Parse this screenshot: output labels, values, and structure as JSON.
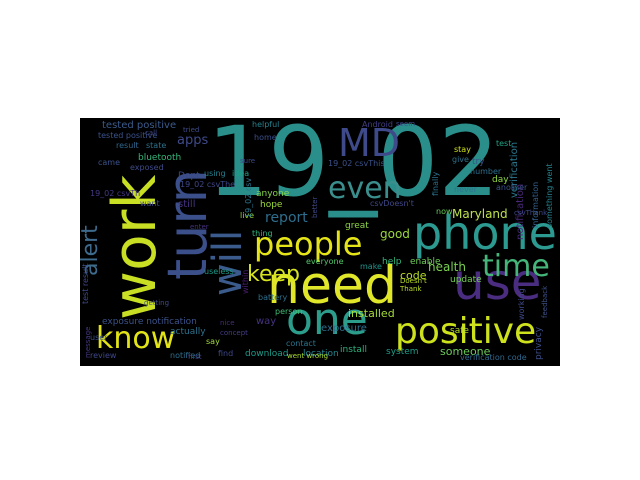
{
  "wordcloud": {
    "background": "#000000",
    "words": [
      {
        "text": "19_02",
        "color": "#2a8f8a",
        "orientation": "horizontal"
      },
      {
        "text": "need",
        "color": "#e0e629",
        "orientation": "horizontal"
      },
      {
        "text": "phone",
        "color": "#2c9a90",
        "orientation": "horizontal"
      },
      {
        "text": "work",
        "color": "#c9df24",
        "orientation": "vertical"
      },
      {
        "text": "use",
        "color": "#4a2d80",
        "orientation": "horizontal"
      },
      {
        "text": "turn",
        "color": "#3b4f8a",
        "orientation": "vertical"
      },
      {
        "text": "one",
        "color": "#2c9d8b",
        "orientation": "horizontal"
      },
      {
        "text": "positive",
        "color": "#cde11d",
        "orientation": "horizontal"
      },
      {
        "text": "will",
        "color": "#3a5b8c",
        "orientation": "vertical"
      },
      {
        "text": "people",
        "color": "#e5e419",
        "orientation": "horizontal"
      },
      {
        "text": "MD",
        "color": "#3f4a8a",
        "orientation": "horizontal"
      },
      {
        "text": "even",
        "color": "#3a8f8d",
        "orientation": "horizontal"
      },
      {
        "text": "know",
        "color": "#e2e418",
        "orientation": "horizontal"
      },
      {
        "text": "time",
        "color": "#45b57a",
        "orientation": "horizontal"
      },
      {
        "text": "keep",
        "color": "#d6e31e",
        "orientation": "horizontal"
      },
      {
        "text": "alert",
        "color": "#3e6b8d",
        "orientation": "vertical"
      },
      {
        "text": "tested positive",
        "color": "#3b5b8c",
        "orientation": "horizontal"
      },
      {
        "text": "apps",
        "color": "#3e4a89",
        "orientation": "horizontal"
      },
      {
        "text": "bluetooth",
        "color": "#35b779",
        "orientation": "horizontal"
      },
      {
        "text": "report",
        "color": "#2e6e8e",
        "orientation": "horizontal"
      },
      {
        "text": "Maryland",
        "color": "#bde050",
        "orientation": "horizontal"
      },
      {
        "text": "good",
        "color": "#9bd93c",
        "orientation": "horizontal"
      },
      {
        "text": "health",
        "color": "#7ad151",
        "orientation": "horizontal"
      },
      {
        "text": "code",
        "color": "#b8de29",
        "orientation": "horizontal"
      },
      {
        "text": "installed",
        "color": "#a5db36",
        "orientation": "horizontal"
      },
      {
        "text": "exposure notification",
        "color": "#3b528b",
        "orientation": "horizontal"
      },
      {
        "text": "someone",
        "color": "#6ccd5a",
        "orientation": "horizontal"
      },
      {
        "text": "verification code",
        "color": "#31688e",
        "orientation": "horizontal"
      },
      {
        "text": "notification",
        "color": "#482878",
        "orientation": "vertical"
      },
      {
        "text": "verification",
        "color": "#2a788e",
        "orientation": "vertical"
      },
      {
        "text": "day",
        "color": "#8fd744",
        "orientation": "horizontal"
      },
      {
        "text": "Dept",
        "color": "#3e4989",
        "orientation": "horizontal"
      },
      {
        "text": "still",
        "color": "#46327e",
        "orientation": "horizontal"
      },
      {
        "text": "exposure",
        "color": "#2d708e",
        "orientation": "horizontal"
      },
      {
        "text": "location",
        "color": "#25858e",
        "orientation": "horizontal"
      },
      {
        "text": "install",
        "color": "#2db27d",
        "orientation": "horizontal"
      },
      {
        "text": "way",
        "color": "#46327e",
        "orientation": "horizontal"
      },
      {
        "text": "actually",
        "color": "#2c728e",
        "orientation": "horizontal"
      },
      {
        "text": "download",
        "color": "#1f9a8a",
        "orientation": "horizontal"
      },
      {
        "text": "system",
        "color": "#1e9c89",
        "orientation": "horizontal"
      },
      {
        "text": "safe",
        "color": "#b5de2b",
        "orientation": "horizontal"
      },
      {
        "text": "privacy",
        "color": "#3c4f8a",
        "orientation": "vertical"
      },
      {
        "text": "enable",
        "color": "#6ece58",
        "orientation": "horizontal"
      },
      {
        "text": "update",
        "color": "#73d056",
        "orientation": "horizontal"
      },
      {
        "text": "information",
        "color": "#35608d",
        "orientation": "vertical"
      },
      {
        "text": "something went",
        "color": "#26828e",
        "orientation": "vertical"
      },
      {
        "text": "test result",
        "color": "#3e4a89",
        "orientation": "vertical"
      },
      {
        "text": "19_02 csvThe",
        "color": "#3f4788",
        "orientation": "horizontal"
      },
      {
        "text": "19_02 csvTh",
        "color": "#443983",
        "orientation": "horizontal"
      },
      {
        "text": "tested positive",
        "color": "#3b528b",
        "orientation": "horizontal"
      },
      {
        "text": "result",
        "color": "#31688e",
        "orientation": "horizontal"
      },
      {
        "text": "state",
        "color": "#2c728e",
        "orientation": "horizontal"
      },
      {
        "text": "exposed",
        "color": "#3e4c8a",
        "orientation": "horizontal"
      },
      {
        "text": "helpful",
        "color": "#26818e",
        "orientation": "horizontal"
      },
      {
        "text": "home",
        "color": "#3b518b",
        "orientation": "horizontal"
      },
      {
        "text": "hope",
        "color": "#9dd93b",
        "orientation": "horizontal"
      },
      {
        "text": "anyone",
        "color": "#85d54a",
        "orientation": "horizontal"
      },
      {
        "text": "thing",
        "color": "#2fb47c",
        "orientation": "horizontal"
      },
      {
        "text": "person",
        "color": "#3fbc73",
        "orientation": "horizontal"
      },
      {
        "text": "contact",
        "color": "#2a768e",
        "orientation": "horizontal"
      },
      {
        "text": "everyone",
        "color": "#52c569",
        "orientation": "horizontal"
      },
      {
        "text": "great",
        "color": "#8ed645",
        "orientation": "horizontal"
      },
      {
        "text": "help",
        "color": "#31b57b",
        "orientation": "horizontal"
      },
      {
        "text": "make",
        "color": "#1f958b",
        "orientation": "horizontal"
      },
      {
        "text": "went wrong",
        "color": "#a8db34",
        "orientation": "horizontal"
      },
      {
        "text": "Android",
        "color": "#433e85",
        "orientation": "horizontal"
      },
      {
        "text": "stay",
        "color": "#d0e11c",
        "orientation": "horizontal"
      },
      {
        "text": "give",
        "color": "#2d718e",
        "orientation": "horizontal"
      },
      {
        "text": "try",
        "color": "#3a538b",
        "orientation": "horizontal"
      },
      {
        "text": "number",
        "color": "#2e6f8e",
        "orientation": "horizontal"
      },
      {
        "text": "test",
        "color": "#20a386",
        "orientation": "horizontal"
      },
      {
        "text": "never",
        "color": "#2a768e",
        "orientation": "horizontal"
      },
      {
        "text": "now",
        "color": "#67cc5c",
        "orientation": "horizontal"
      },
      {
        "text": "live",
        "color": "#9dd93b",
        "orientation": "horizontal"
      },
      {
        "text": "say",
        "color": "#a0da39",
        "orientation": "horizontal"
      },
      {
        "text": "find",
        "color": "#3e4989",
        "orientation": "horizontal"
      },
      {
        "text": "notified",
        "color": "#2e6f8e",
        "orientation": "horizontal"
      },
      {
        "text": "review",
        "color": "#3f4889",
        "orientation": "horizontal"
      },
      {
        "text": "user",
        "color": "#3b528b",
        "orientation": "horizontal"
      },
      {
        "text": "useless",
        "color": "#1e9b8a",
        "orientation": "horizontal"
      },
      {
        "text": "using",
        "color": "#27808e",
        "orientation": "horizontal"
      },
      {
        "text": "idea",
        "color": "#1fa188",
        "orientation": "horizontal"
      },
      {
        "text": "want",
        "color": "#3e4a89",
        "orientation": "horizontal"
      },
      {
        "text": "came",
        "color": "#3b528b",
        "orientation": "horizontal"
      },
      {
        "text": "Thank",
        "color": "#bddf26",
        "orientation": "horizontal"
      },
      {
        "text": "Doesn't",
        "color": "#bade28",
        "orientation": "horizontal"
      },
      {
        "text": "finally",
        "color": "#2c738e",
        "orientation": "vertical"
      },
      {
        "text": "csvDoesn't",
        "color": "#3f4788",
        "orientation": "horizontal"
      },
      {
        "text": "19_02 csvThis",
        "color": "#3b528b",
        "orientation": "horizontal"
      },
      {
        "text": "19_02 csv",
        "color": "#2a768e",
        "orientation": "vertical"
      },
      {
        "text": "enter",
        "color": "#46307e",
        "orientation": "horizontal"
      },
      {
        "text": "within",
        "color": "#481f70",
        "orientation": "vertical"
      },
      {
        "text": "battery",
        "color": "#2d708e",
        "orientation": "horizontal"
      },
      {
        "text": "another",
        "color": "#3b528b",
        "orientation": "horizontal"
      },
      {
        "text": "working",
        "color": "#3e4989",
        "orientation": "vertical"
      },
      {
        "text": "seem",
        "color": "#3e4c8a",
        "orientation": "horizontal"
      },
      {
        "text": "concept",
        "color": "#433e85",
        "orientation": "horizontal"
      },
      {
        "text": "better",
        "color": "#3f4889",
        "orientation": "vertical"
      },
      {
        "text": "csvThank",
        "color": "#3e4989",
        "orientation": "horizontal"
      },
      {
        "text": "feedback",
        "color": "#3b528b",
        "orientation": "vertical"
      },
      {
        "text": "message",
        "color": "#453781",
        "orientation": "vertical"
      },
      {
        "text": "getting",
        "color": "#3e4c8a",
        "orientation": "horizontal"
      },
      {
        "text": "tried",
        "color": "#3e4c8a",
        "orientation": "horizontal"
      },
      {
        "text": "nice",
        "color": "#472d7b",
        "orientation": "horizontal"
      },
      {
        "text": "sure",
        "color": "#3e4989",
        "orientation": "horizontal"
      },
      {
        "text": "call",
        "color": "#3e4989",
        "orientation": "horizontal"
      },
      {
        "text": "first",
        "color": "#433e85",
        "orientation": "horizontal"
      }
    ]
  }
}
